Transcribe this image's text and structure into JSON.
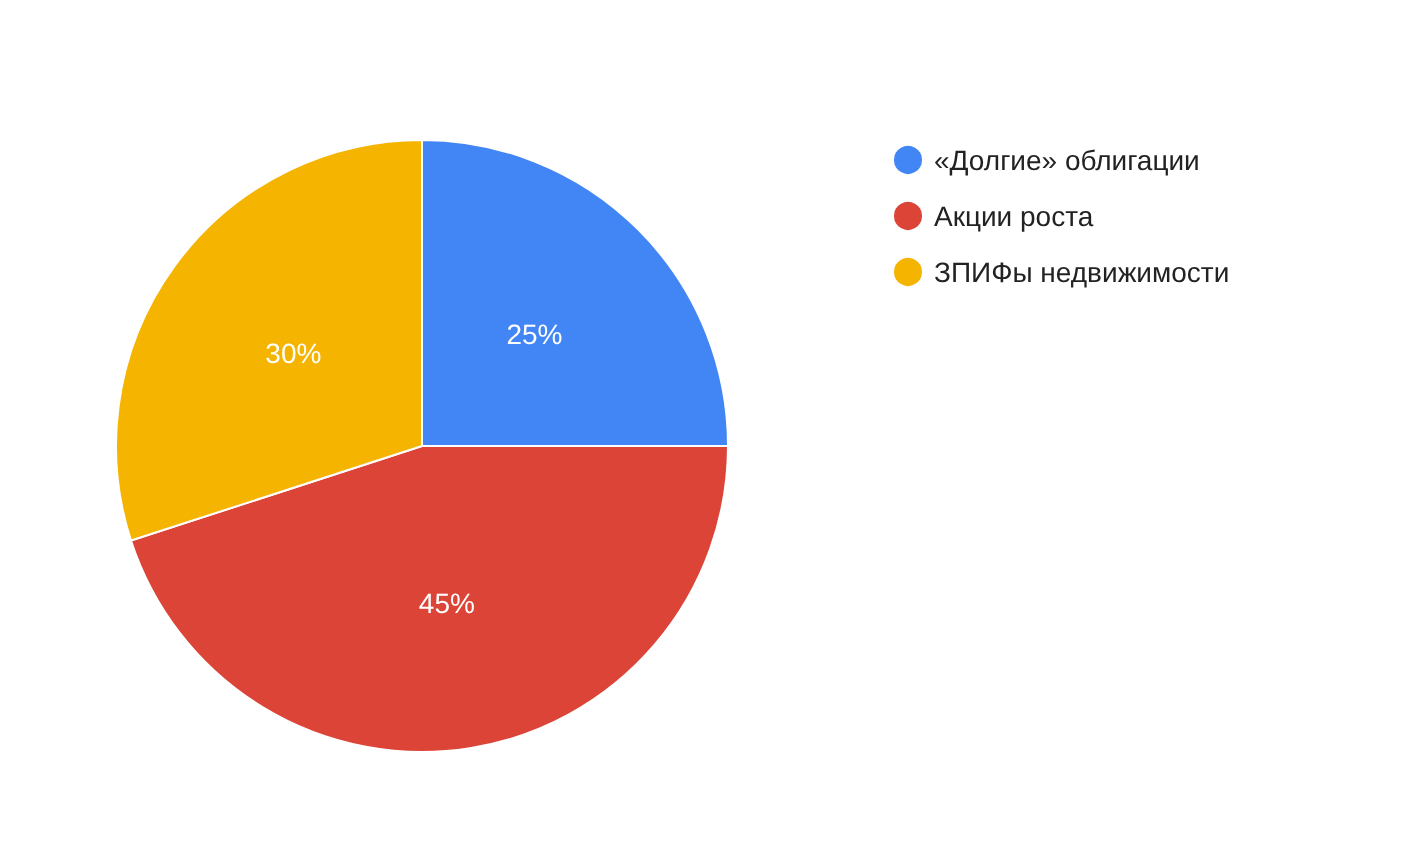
{
  "chart_data": {
    "type": "pie",
    "categories": [
      "«Долгие» облигации",
      "Акции роста",
      "ЗПИФы недвижимости"
    ],
    "values": [
      25,
      45,
      30
    ],
    "value_labels": [
      "25%",
      "45%",
      "30%"
    ],
    "colors": [
      "#4285f4",
      "#db4437",
      "#f4b400"
    ],
    "legend": "top right"
  }
}
